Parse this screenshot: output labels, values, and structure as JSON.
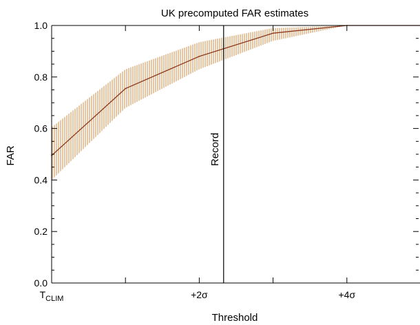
{
  "chart_data": {
    "type": "line",
    "title": "UK precomputed FAR estimates",
    "xlabel": "Threshold",
    "ylabel": "FAR",
    "xlim": [
      0,
      5
    ],
    "ylim": [
      0,
      1
    ],
    "x_ticks": [
      {
        "value": 0,
        "base": "T",
        "sub": "CLIM"
      },
      {
        "value": 2,
        "base": "+2σ",
        "sub": ""
      },
      {
        "value": 4,
        "base": "+4σ",
        "sub": ""
      }
    ],
    "x_minor_ticks": [
      1,
      3,
      5
    ],
    "y_ticks": [
      {
        "value": 0,
        "label": "0.0"
      },
      {
        "value": 0.2,
        "label": "0.2"
      },
      {
        "value": 0.4,
        "label": "0.4"
      },
      {
        "value": 0.6,
        "label": "0.6"
      },
      {
        "value": 0.8,
        "label": "0.8"
      },
      {
        "value": 1.0,
        "label": "1.0"
      }
    ],
    "y_minor_step": 0.05,
    "series": [
      {
        "x": [
          0,
          1,
          2,
          3,
          4,
          5
        ],
        "y": [
          0.495,
          0.755,
          0.88,
          0.97,
          1.0,
          1.0
        ],
        "y_lower": [
          0.4,
          0.68,
          0.83,
          0.94,
          1.0,
          1.0
        ],
        "y_upper": [
          0.605,
          0.83,
          0.935,
          0.99,
          1.0,
          1.0
        ],
        "color": "#8b3a1e",
        "band_color": "#dcae7a"
      }
    ],
    "annotations": [
      {
        "type": "vline",
        "x": 2.33,
        "label": "Record"
      }
    ],
    "grid": false
  }
}
